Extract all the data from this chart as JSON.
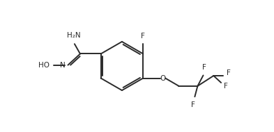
{
  "background_color": "#ffffff",
  "line_color": "#2a2a2a",
  "line_width": 1.4,
  "font_size": 7.5,
  "figsize": [
    3.93,
    1.9
  ],
  "dpi": 100,
  "xlim": [
    0,
    14
  ],
  "ylim": [
    0,
    7
  ]
}
